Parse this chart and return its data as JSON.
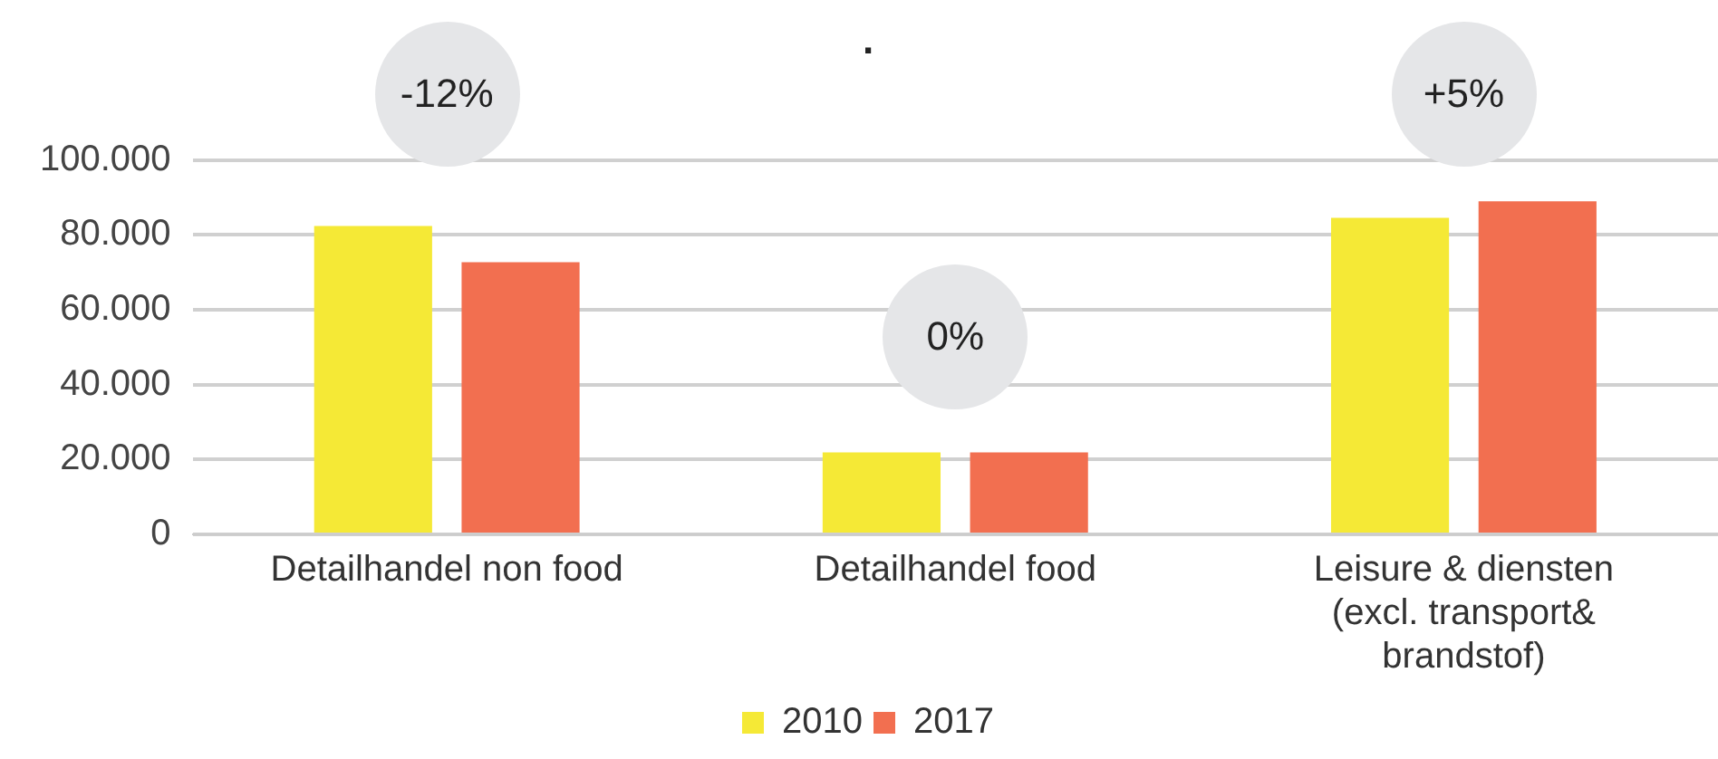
{
  "chart_data": {
    "type": "bar",
    "title": ".",
    "categories": [
      "Detailhandel non food",
      "Detailhandel food",
      "Leisure & diensten (excl. transport& brandstof)"
    ],
    "series": [
      {
        "name": "2010",
        "color": "#f5e936",
        "values": [
          82400,
          21900,
          84600
        ]
      },
      {
        "name": "2017",
        "color": "#f26f50",
        "values": [
          72700,
          21900,
          89000
        ]
      }
    ],
    "ylim": [
      0,
      100000
    ],
    "yticks": [
      {
        "value": 0,
        "label": "0"
      },
      {
        "value": 20000,
        "label": "20.000"
      },
      {
        "value": 40000,
        "label": "40.000"
      },
      {
        "value": 60000,
        "label": "60.000"
      },
      {
        "value": 80000,
        "label": "80.000"
      },
      {
        "value": 100000,
        "label": "100.000"
      }
    ],
    "annotations": [
      "-12%",
      "0%",
      "+5%"
    ],
    "grid": "y",
    "legend": "bottom"
  }
}
